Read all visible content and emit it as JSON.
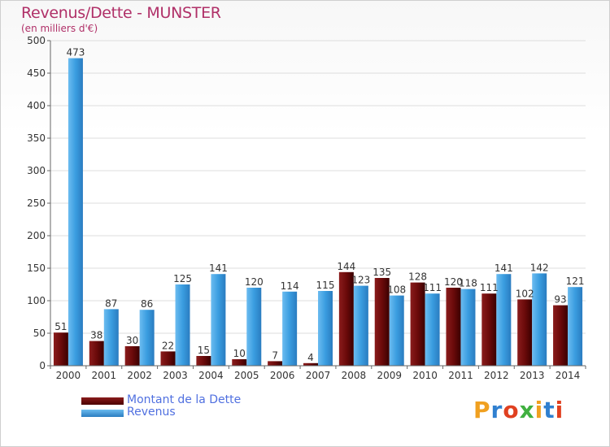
{
  "header": {
    "title": "Revenus/Dette - MUNSTER",
    "subtitle": "(en milliers d'€)"
  },
  "legend": {
    "items": [
      {
        "label": "Montant de la Dette",
        "color": "#6b0a0a"
      },
      {
        "label": "Revenus",
        "color": "#3a9de0"
      }
    ]
  },
  "logo": {
    "text": "Proxiti",
    "colors": [
      "#f0a020",
      "#3080d0",
      "#e04020",
      "#40b040",
      "#f0a020",
      "#3080d0",
      "#e04020"
    ]
  },
  "chart_data": {
    "type": "bar",
    "title": "Revenus/Dette - MUNSTER",
    "ylabel": "(en milliers d'€)",
    "categories": [
      "2000",
      "2001",
      "2002",
      "2003",
      "2004",
      "2005",
      "2006",
      "2007",
      "2008",
      "2009",
      "2010",
      "2011",
      "2012",
      "2013",
      "2014"
    ],
    "series": [
      {
        "name": "Montant de la Dette",
        "color": "#6b0a0a",
        "values": [
          51,
          38,
          30,
          22,
          15,
          10,
          7,
          4,
          144,
          135,
          128,
          120,
          111,
          102,
          93
        ]
      },
      {
        "name": "Revenus",
        "color": "#3a9de0",
        "values": [
          473,
          87,
          86,
          125,
          141,
          120,
          114,
          115,
          123,
          108,
          111,
          118,
          141,
          142,
          121
        ]
      }
    ],
    "ylim": [
      0,
      500
    ],
    "yticks": [
      0,
      50,
      100,
      150,
      200,
      250,
      300,
      350,
      400,
      450,
      500
    ],
    "grid": true,
    "legend": "bottom-left"
  }
}
